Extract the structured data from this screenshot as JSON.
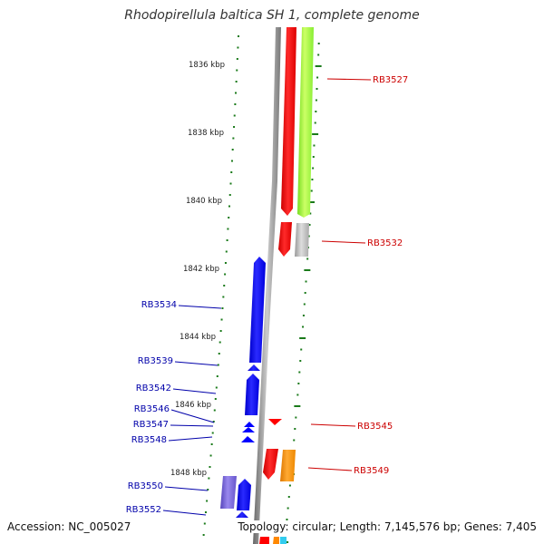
{
  "title": "Rhodopirellula baltica SH 1, complete genome",
  "accession": "Accession: NC_005027",
  "summary": "Topology: circular; Length: 7,145,576 bp; Genes: 7,405",
  "scale_labels": [
    "1836 kbp",
    "1838 kbp",
    "1840 kbp",
    "1842 kbp",
    "1844 kbp",
    "1846 kbp",
    "1848 kbp"
  ],
  "forward_genes": [
    "RB3527",
    "RB3532",
    "RB3545",
    "RB3549"
  ],
  "reverse_genes": [
    "RB3534",
    "RB3539",
    "RB3542",
    "RB3546",
    "RB3547",
    "RB3548",
    "RB3550",
    "RB3552"
  ],
  "colors": {
    "scale": "#1a7a1a",
    "backbone": "#888888",
    "forward_label": "#cc0000",
    "reverse_label": "#0000aa",
    "red_gene": "#ff0000",
    "green_gene": "#99ff33",
    "gray_gene": "#aaaaaa",
    "blue_gene": "#0000ff",
    "purple_gene": "#6655cc",
    "orange_gene": "#ff8800"
  }
}
